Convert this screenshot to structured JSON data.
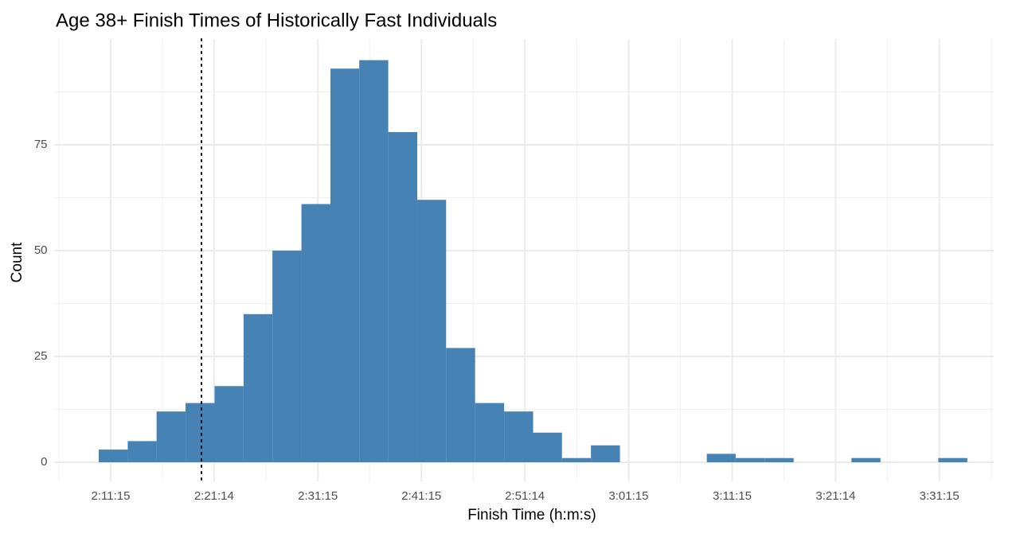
{
  "chart_data": {
    "type": "histogram",
    "title": "Age 38+ Finish Times of Historically Fast Individuals",
    "x_label": "Finish Time (h:m:s)",
    "y_label": "Count",
    "bins": [
      7806,
      7974,
      8141,
      8309,
      8477,
      8645,
      8812,
      8980,
      9148,
      9315,
      9483,
      9651,
      9818,
      9986,
      10154,
      10322,
      10489,
      10657,
      10825,
      10992,
      11160,
      11328,
      11495,
      11663,
      11831,
      11999,
      12166,
      12334,
      12502,
      12669,
      12837
    ],
    "values": [
      3,
      5,
      12,
      14,
      18,
      35,
      50,
      61,
      93,
      95,
      78,
      62,
      27,
      14,
      12,
      7,
      1,
      4,
      0,
      0,
      0,
      2,
      1,
      1,
      0,
      0,
      1,
      0,
      0,
      1
    ],
    "color": "#4682b4",
    "vline": 8401,
    "xlim": [
      7550,
      12990
    ],
    "ylim": [
      -4.5,
      100
    ],
    "xticks": [
      {
        "value": 7875,
        "label": "2:11:15"
      },
      {
        "value": 8474,
        "label": "2:21:14"
      },
      {
        "value": 9075,
        "label": "2:31:15"
      },
      {
        "value": 9675,
        "label": "2:41:15"
      },
      {
        "value": 10274,
        "label": "2:51:14"
      },
      {
        "value": 10875,
        "label": "3:01:15"
      },
      {
        "value": 11475,
        "label": "3:11:15"
      },
      {
        "value": 12074,
        "label": "3:21:14"
      },
      {
        "value": 12675,
        "label": "3:31:15"
      }
    ],
    "yticks": [
      0,
      25,
      50,
      75
    ],
    "xminor": [
      7575,
      8175,
      8775,
      9375,
      9975,
      10575,
      11175,
      11775,
      12375,
      12975
    ],
    "yminor": [
      12.5,
      37.5,
      62.5,
      87.5
    ],
    "grid": true
  }
}
